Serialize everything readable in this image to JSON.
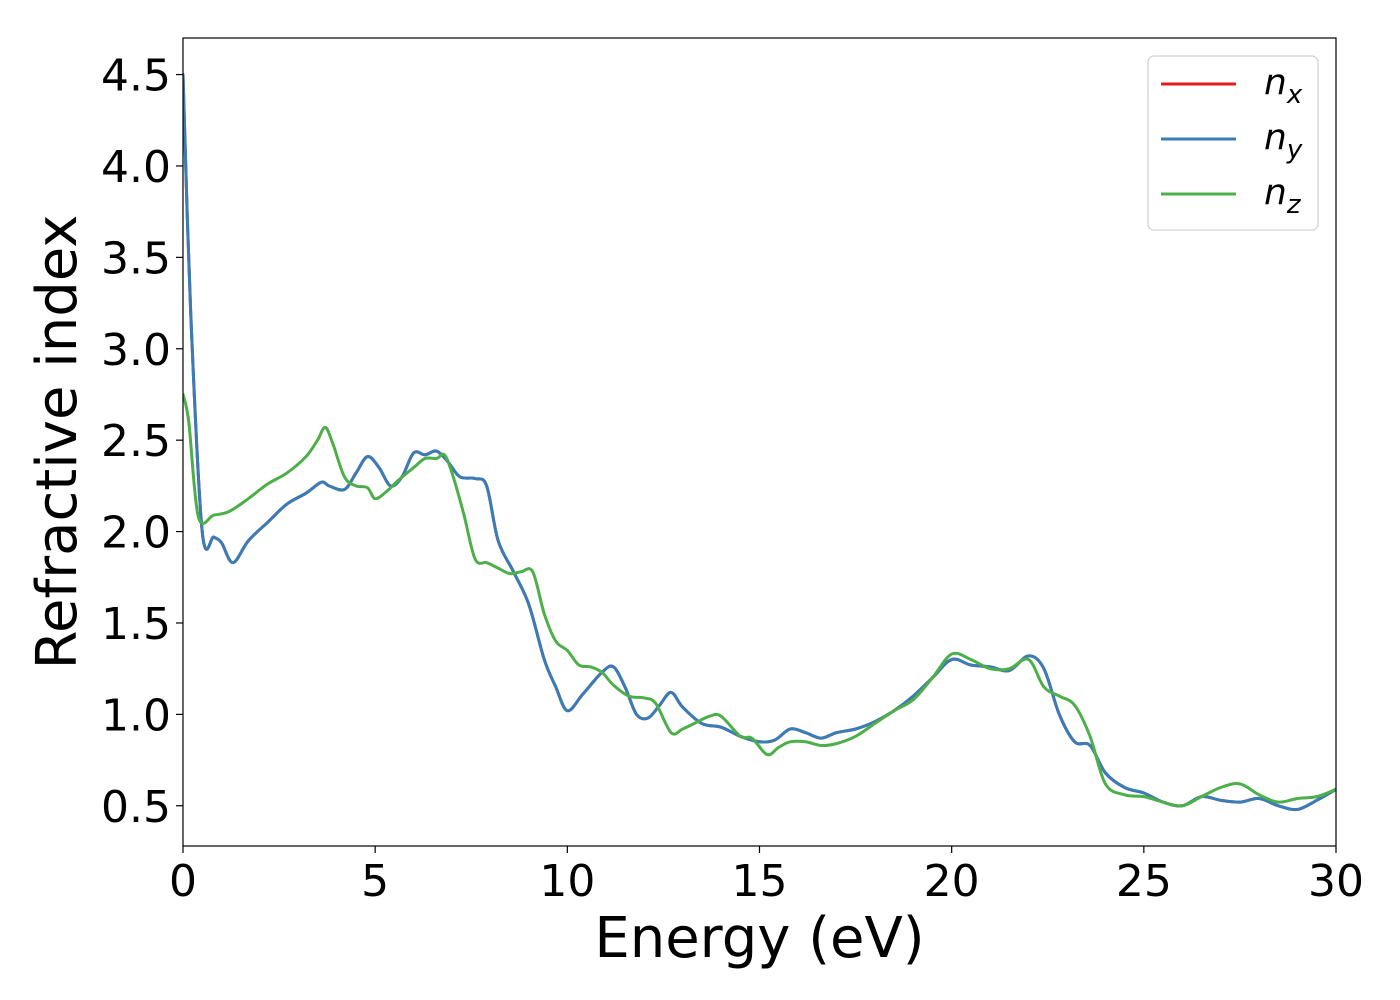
{
  "chart_data": {
    "type": "line",
    "title": "",
    "xlabel": "Energy (eV)",
    "ylabel": "Refractive index",
    "xlim": [
      0,
      30
    ],
    "ylim": [
      0.28,
      4.7
    ],
    "xticks": [
      0,
      5,
      10,
      15,
      20,
      25,
      30
    ],
    "xtick_labels": [
      "0",
      "5",
      "10",
      "15",
      "20",
      "25",
      "30"
    ],
    "yticks": [
      0.5,
      1.0,
      1.5,
      2.0,
      2.5,
      3.0,
      3.5,
      4.0,
      4.5
    ],
    "ytick_labels": [
      "0.5",
      "1.0",
      "1.5",
      "2.0",
      "2.5",
      "3.0",
      "3.5",
      "4.0",
      "4.5"
    ],
    "grid": false,
    "legend_position": "top-right",
    "series": [
      {
        "name": "n_x",
        "legend_base": "n",
        "legend_sub": "x",
        "color": "#e41a1c",
        "x": [
          0,
          0.2,
          0.5,
          0.8,
          1.0,
          1.3,
          1.7,
          2.2,
          2.7,
          3.2,
          3.6,
          3.8,
          4.2,
          4.5,
          4.8,
          5.1,
          5.4,
          5.7,
          6.0,
          6.3,
          6.6,
          6.9,
          7.2,
          7.6,
          7.9,
          8.2,
          8.6,
          9.0,
          9.4,
          9.7,
          10.0,
          10.4,
          10.9,
          11.2,
          11.5,
          11.8,
          12.1,
          12.4,
          12.7,
          13.0,
          13.5,
          14.0,
          14.5,
          15.0,
          15.4,
          15.8,
          16.2,
          16.6,
          17.0,
          17.5,
          18.0,
          18.5,
          19.0,
          19.5,
          20.0,
          20.5,
          21.0,
          21.5,
          22.0,
          22.4,
          22.8,
          23.2,
          23.6,
          24.0,
          24.5,
          25.0,
          25.5,
          26.0,
          26.5,
          27.0,
          27.5,
          28.0,
          28.5,
          29.0,
          29.5,
          30.0
        ],
        "y": [
          4.5,
          3.2,
          2.0,
          1.97,
          1.94,
          1.83,
          1.95,
          2.05,
          2.15,
          2.21,
          2.27,
          2.25,
          2.23,
          2.32,
          2.41,
          2.35,
          2.25,
          2.3,
          2.43,
          2.42,
          2.44,
          2.38,
          2.3,
          2.29,
          2.25,
          1.95,
          1.78,
          1.6,
          1.3,
          1.15,
          1.02,
          1.11,
          1.23,
          1.26,
          1.15,
          1.0,
          0.98,
          1.05,
          1.12,
          1.04,
          0.95,
          0.93,
          0.88,
          0.85,
          0.86,
          0.92,
          0.9,
          0.87,
          0.9,
          0.92,
          0.96,
          1.02,
          1.1,
          1.2,
          1.3,
          1.27,
          1.26,
          1.24,
          1.32,
          1.25,
          1.0,
          0.85,
          0.83,
          0.68,
          0.6,
          0.57,
          0.52,
          0.5,
          0.55,
          0.53,
          0.52,
          0.54,
          0.5,
          0.48,
          0.53,
          0.59
        ]
      },
      {
        "name": "n_y",
        "legend_base": "n",
        "legend_sub": "y",
        "color": "#377eb8",
        "x": [
          0,
          0.2,
          0.5,
          0.8,
          1.0,
          1.3,
          1.7,
          2.2,
          2.7,
          3.2,
          3.6,
          3.8,
          4.2,
          4.5,
          4.8,
          5.1,
          5.4,
          5.7,
          6.0,
          6.3,
          6.6,
          6.9,
          7.2,
          7.6,
          7.9,
          8.2,
          8.6,
          9.0,
          9.4,
          9.7,
          10.0,
          10.4,
          10.9,
          11.2,
          11.5,
          11.8,
          12.1,
          12.4,
          12.7,
          13.0,
          13.5,
          14.0,
          14.5,
          15.0,
          15.4,
          15.8,
          16.2,
          16.6,
          17.0,
          17.5,
          18.0,
          18.5,
          19.0,
          19.5,
          20.0,
          20.5,
          21.0,
          21.5,
          22.0,
          22.4,
          22.8,
          23.2,
          23.6,
          24.0,
          24.5,
          25.0,
          25.5,
          26.0,
          26.5,
          27.0,
          27.5,
          28.0,
          28.5,
          29.0,
          29.5,
          30.0
        ],
        "y": [
          4.5,
          3.2,
          2.0,
          1.97,
          1.94,
          1.83,
          1.95,
          2.05,
          2.15,
          2.21,
          2.27,
          2.25,
          2.23,
          2.32,
          2.41,
          2.35,
          2.25,
          2.3,
          2.43,
          2.42,
          2.44,
          2.38,
          2.3,
          2.29,
          2.25,
          1.95,
          1.78,
          1.6,
          1.3,
          1.15,
          1.02,
          1.11,
          1.23,
          1.26,
          1.15,
          1.0,
          0.98,
          1.05,
          1.12,
          1.04,
          0.95,
          0.93,
          0.88,
          0.85,
          0.86,
          0.92,
          0.9,
          0.87,
          0.9,
          0.92,
          0.96,
          1.02,
          1.1,
          1.2,
          1.3,
          1.27,
          1.26,
          1.24,
          1.32,
          1.25,
          1.0,
          0.85,
          0.83,
          0.68,
          0.6,
          0.57,
          0.52,
          0.5,
          0.55,
          0.53,
          0.52,
          0.54,
          0.5,
          0.48,
          0.53,
          0.59
        ]
      },
      {
        "name": "n_z",
        "legend_base": "n",
        "legend_sub": "z",
        "color": "#4daf4a",
        "x": [
          0,
          0.15,
          0.4,
          0.8,
          1.2,
          1.7,
          2.2,
          2.7,
          3.2,
          3.5,
          3.7,
          3.9,
          4.2,
          4.5,
          4.8,
          5.0,
          5.3,
          5.6,
          6.0,
          6.3,
          6.6,
          6.8,
          7.0,
          7.3,
          7.6,
          7.9,
          8.2,
          8.5,
          8.8,
          9.1,
          9.4,
          9.7,
          10.0,
          10.3,
          10.6,
          10.9,
          11.2,
          11.6,
          12.0,
          12.3,
          12.7,
          13.0,
          13.3,
          13.7,
          14.0,
          14.5,
          14.8,
          15.2,
          15.5,
          15.8,
          16.2,
          16.6,
          17.0,
          17.5,
          18.0,
          18.5,
          19.0,
          19.5,
          20.0,
          20.5,
          21.0,
          21.5,
          22.0,
          22.4,
          22.8,
          23.2,
          23.6,
          24.0,
          24.5,
          25.0,
          25.5,
          26.0,
          26.5,
          27.0,
          27.5,
          28.0,
          28.5,
          29.0,
          29.5,
          30.0
        ],
        "y": [
          2.75,
          2.6,
          2.08,
          2.09,
          2.11,
          2.18,
          2.26,
          2.32,
          2.41,
          2.5,
          2.57,
          2.48,
          2.3,
          2.25,
          2.24,
          2.18,
          2.22,
          2.28,
          2.35,
          2.4,
          2.4,
          2.42,
          2.32,
          2.1,
          1.85,
          1.83,
          1.8,
          1.77,
          1.78,
          1.78,
          1.55,
          1.4,
          1.35,
          1.27,
          1.26,
          1.23,
          1.16,
          1.1,
          1.09,
          1.06,
          0.9,
          0.92,
          0.95,
          0.99,
          0.99,
          0.88,
          0.87,
          0.78,
          0.82,
          0.85,
          0.85,
          0.83,
          0.84,
          0.88,
          0.95,
          1.02,
          1.08,
          1.2,
          1.33,
          1.3,
          1.25,
          1.25,
          1.3,
          1.15,
          1.1,
          1.05,
          0.88,
          0.62,
          0.56,
          0.55,
          0.52,
          0.5,
          0.55,
          0.6,
          0.62,
          0.56,
          0.52,
          0.54,
          0.55,
          0.59
        ]
      }
    ]
  }
}
